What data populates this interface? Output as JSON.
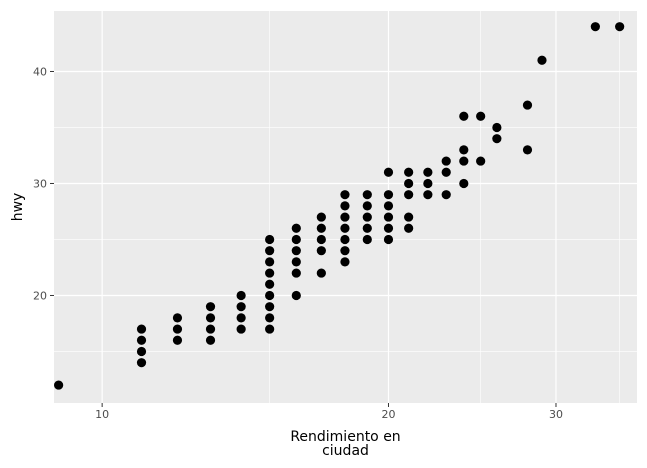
{
  "chart_data": {
    "type": "scatter",
    "xlabel_lines": [
      "Rendimiento en",
      "ciudad"
    ],
    "ylabel": "hwy",
    "x_scale": "log",
    "xlim": [
      8.9,
      36.5
    ],
    "ylim": [
      10.4,
      45.4
    ],
    "x_ticks": [
      10,
      20,
      30
    ],
    "y_ticks": [
      20,
      30,
      40
    ],
    "x_minor_ticks": [
      15,
      25,
      35
    ],
    "y_minor_ticks": [
      15,
      25,
      35
    ],
    "grid": true,
    "point_color": "#000000",
    "panel_background": "#ebebeb",
    "grid_color": "#ffffff",
    "points": [
      {
        "x": 9,
        "y": 12
      },
      {
        "x": 11,
        "y": 14
      },
      {
        "x": 11,
        "y": 15
      },
      {
        "x": 11,
        "y": 16
      },
      {
        "x": 11,
        "y": 17
      },
      {
        "x": 12,
        "y": 16
      },
      {
        "x": 12,
        "y": 17
      },
      {
        "x": 12,
        "y": 18
      },
      {
        "x": 13,
        "y": 16
      },
      {
        "x": 13,
        "y": 17
      },
      {
        "x": 13,
        "y": 18
      },
      {
        "x": 13,
        "y": 19
      },
      {
        "x": 14,
        "y": 17
      },
      {
        "x": 14,
        "y": 18
      },
      {
        "x": 14,
        "y": 19
      },
      {
        "x": 14,
        "y": 20
      },
      {
        "x": 15,
        "y": 17
      },
      {
        "x": 15,
        "y": 18
      },
      {
        "x": 15,
        "y": 19
      },
      {
        "x": 15,
        "y": 20
      },
      {
        "x": 15,
        "y": 21
      },
      {
        "x": 15,
        "y": 22
      },
      {
        "x": 15,
        "y": 23
      },
      {
        "x": 15,
        "y": 24
      },
      {
        "x": 15,
        "y": 25
      },
      {
        "x": 16,
        "y": 20
      },
      {
        "x": 16,
        "y": 22
      },
      {
        "x": 16,
        "y": 23
      },
      {
        "x": 16,
        "y": 24
      },
      {
        "x": 16,
        "y": 25
      },
      {
        "x": 16,
        "y": 26
      },
      {
        "x": 17,
        "y": 22
      },
      {
        "x": 17,
        "y": 24
      },
      {
        "x": 17,
        "y": 25
      },
      {
        "x": 17,
        "y": 26
      },
      {
        "x": 17,
        "y": 27
      },
      {
        "x": 18,
        "y": 23
      },
      {
        "x": 18,
        "y": 24
      },
      {
        "x": 18,
        "y": 25
      },
      {
        "x": 18,
        "y": 26
      },
      {
        "x": 18,
        "y": 27
      },
      {
        "x": 18,
        "y": 28
      },
      {
        "x": 18,
        "y": 29
      },
      {
        "x": 19,
        "y": 25
      },
      {
        "x": 19,
        "y": 26
      },
      {
        "x": 19,
        "y": 27
      },
      {
        "x": 19,
        "y": 28
      },
      {
        "x": 19,
        "y": 29
      },
      {
        "x": 20,
        "y": 25
      },
      {
        "x": 20,
        "y": 26
      },
      {
        "x": 20,
        "y": 27
      },
      {
        "x": 20,
        "y": 28
      },
      {
        "x": 20,
        "y": 29
      },
      {
        "x": 20,
        "y": 31
      },
      {
        "x": 21,
        "y": 26
      },
      {
        "x": 21,
        "y": 27
      },
      {
        "x": 21,
        "y": 29
      },
      {
        "x": 21,
        "y": 30
      },
      {
        "x": 21,
        "y": 31
      },
      {
        "x": 22,
        "y": 29
      },
      {
        "x": 22,
        "y": 30
      },
      {
        "x": 22,
        "y": 31
      },
      {
        "x": 23,
        "y": 29
      },
      {
        "x": 23,
        "y": 31
      },
      {
        "x": 23,
        "y": 32
      },
      {
        "x": 24,
        "y": 30
      },
      {
        "x": 24,
        "y": 32
      },
      {
        "x": 24,
        "y": 33
      },
      {
        "x": 24,
        "y": 36
      },
      {
        "x": 25,
        "y": 32
      },
      {
        "x": 25,
        "y": 36
      },
      {
        "x": 26,
        "y": 34
      },
      {
        "x": 26,
        "y": 35
      },
      {
        "x": 28,
        "y": 33
      },
      {
        "x": 28,
        "y": 37
      },
      {
        "x": 29,
        "y": 41
      },
      {
        "x": 33,
        "y": 44
      },
      {
        "x": 35,
        "y": 44
      }
    ]
  }
}
